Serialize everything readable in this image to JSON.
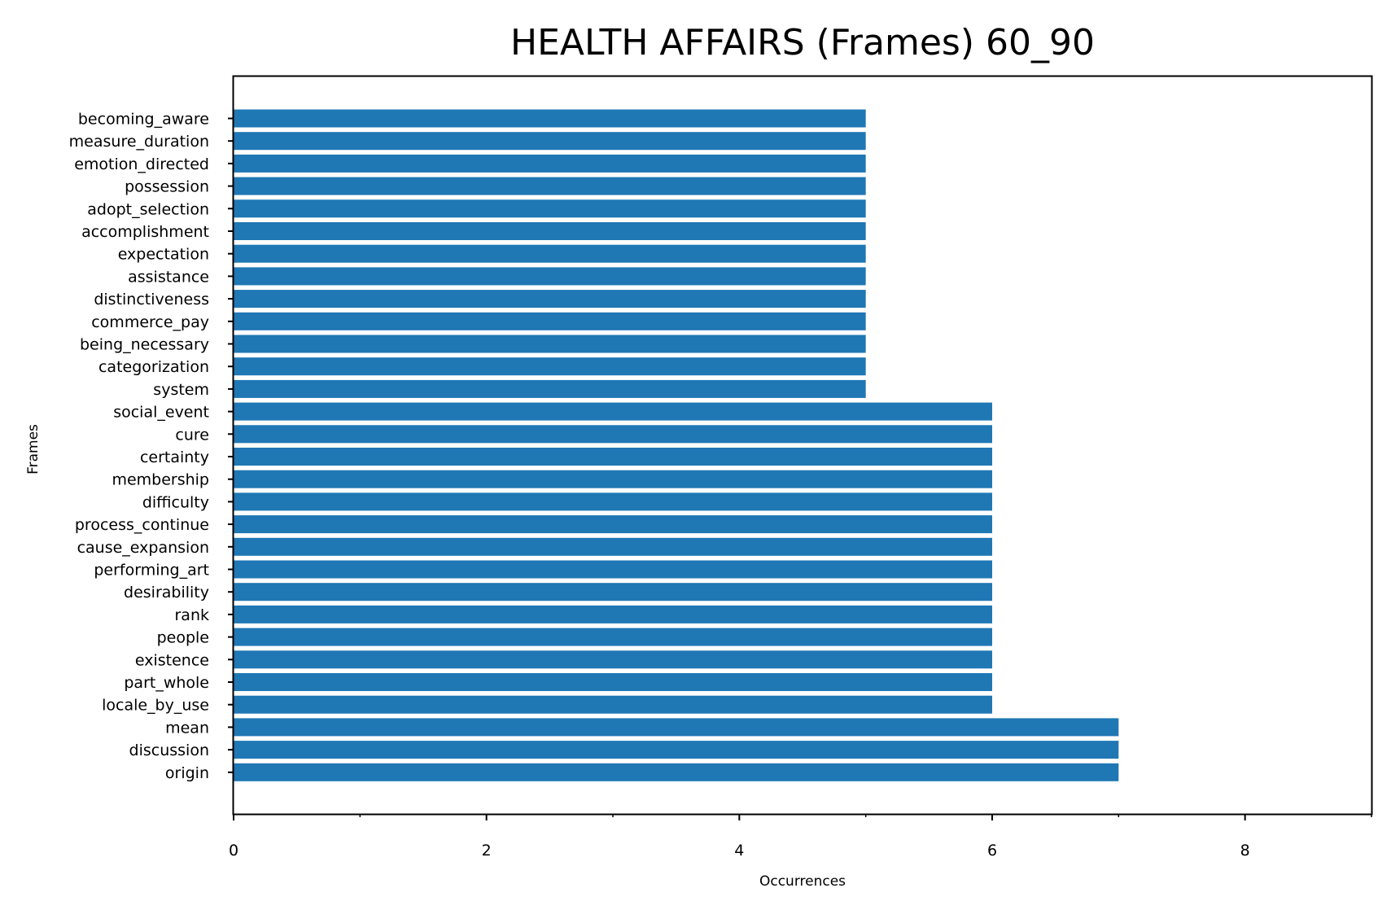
{
  "chart_data": {
    "type": "bar",
    "orientation": "horizontal",
    "title": "HEALTH AFFAIRS (Frames) 60_90",
    "xlabel": "Occurrences",
    "ylabel": "Frames",
    "xlim": [
      0,
      9
    ],
    "x_ticks": [
      0,
      2,
      4,
      6,
      8
    ],
    "x_minor_ticks": [
      1,
      3,
      5,
      7,
      9
    ],
    "grid": false,
    "bar_color": "#1f77b4",
    "categories": [
      "becoming_aware",
      "measure_duration",
      "emotion_directed",
      "possession",
      "adopt_selection",
      "accomplishment",
      "expectation",
      "assistance",
      "distinctiveness",
      "commerce_pay",
      "being_necessary",
      "categorization",
      "system",
      "social_event",
      "cure",
      "certainty",
      "membership",
      "difficulty",
      "process_continue",
      "cause_expansion",
      "performing_art",
      "desirability",
      "rank",
      "people",
      "existence",
      "part_whole",
      "locale_by_use",
      "mean",
      "discussion",
      "origin"
    ],
    "values": [
      5,
      5,
      5,
      5,
      5,
      5,
      5,
      5,
      5,
      5,
      5,
      5,
      5,
      6,
      6,
      6,
      6,
      6,
      6,
      6,
      6,
      6,
      6,
      6,
      6,
      6,
      6,
      7,
      7,
      7
    ]
  }
}
